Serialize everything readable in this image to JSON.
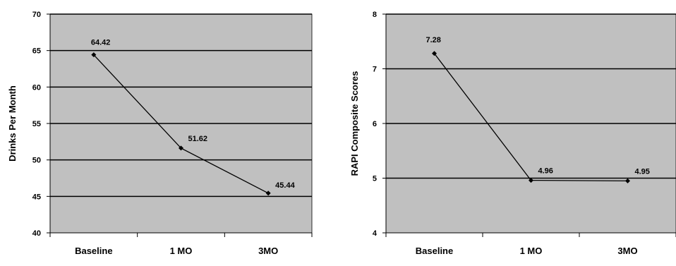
{
  "chart_data": [
    {
      "type": "line",
      "title": "",
      "xlabel": "",
      "ylabel": "Drinks Per Month",
      "categories": [
        "Baseline",
        "1 MO",
        "3MO"
      ],
      "values": [
        64.42,
        51.62,
        45.44
      ],
      "data_labels": [
        "64.42",
        "51.62",
        "45.44"
      ],
      "ylim": [
        40,
        70
      ],
      "yticks": [
        40,
        45,
        50,
        55,
        60,
        65,
        70
      ],
      "ytick_labels": [
        "40",
        "45",
        "50",
        "55",
        "60",
        "65",
        "70"
      ],
      "grid": true,
      "plot_bg": "#c0c0c0",
      "line_color": "#000000"
    },
    {
      "type": "line",
      "title": "",
      "xlabel": "",
      "ylabel": "RAPI Composite Scores",
      "categories": [
        "Baseline",
        "1 MO",
        "3MO"
      ],
      "values": [
        7.28,
        4.96,
        4.95
      ],
      "data_labels": [
        "7.28",
        "4.96",
        "4.95"
      ],
      "ylim": [
        4,
        8
      ],
      "yticks": [
        4,
        5,
        6,
        7,
        8
      ],
      "ytick_labels": [
        "4",
        "5",
        "6",
        "7",
        "8"
      ],
      "grid": true,
      "plot_bg": "#c0c0c0",
      "line_color": "#000000"
    }
  ]
}
